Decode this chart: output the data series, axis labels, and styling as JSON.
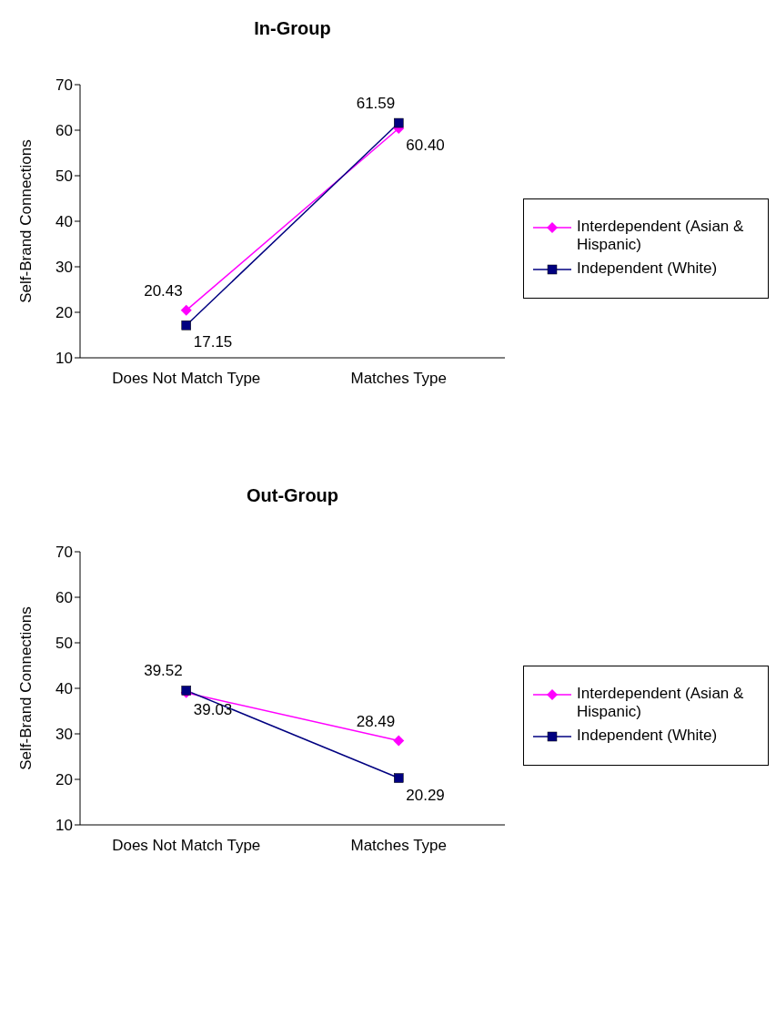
{
  "chart_data": [
    {
      "type": "line",
      "title": "In-Group",
      "ylabel": "Self-Brand Connections",
      "categories": [
        "Does Not Match Type",
        "Matches Type"
      ],
      "ylim": [
        10,
        70
      ],
      "yticks": [
        10,
        20,
        30,
        40,
        50,
        60,
        70
      ],
      "grid": false,
      "legend": "right",
      "series": [
        {
          "name": "Interdependent (Asian & Hispanic)",
          "color": "#ff00ff",
          "marker": "diamond",
          "values": [
            20.43,
            60.4
          ],
          "value_labels": [
            "20.43",
            "60.40"
          ]
        },
        {
          "name": "Independent (White)",
          "color": "#000080",
          "marker": "square",
          "values": [
            17.15,
            61.59
          ],
          "value_labels": [
            "17.15",
            "61.59"
          ]
        }
      ]
    },
    {
      "type": "line",
      "title": "Out-Group",
      "ylabel": "Self-Brand Connections",
      "categories": [
        "Does Not Match Type",
        "Matches Type"
      ],
      "ylim": [
        10,
        70
      ],
      "yticks": [
        10,
        20,
        30,
        40,
        50,
        60,
        70
      ],
      "grid": false,
      "legend": "right",
      "series": [
        {
          "name": "Interdependent (Asian & Hispanic)",
          "color": "#ff00ff",
          "marker": "diamond",
          "values": [
            39.03,
            28.49
          ],
          "value_labels": [
            "39.03",
            "28.49"
          ]
        },
        {
          "name": "Independent (White)",
          "color": "#000080",
          "marker": "square",
          "values": [
            39.52,
            20.29
          ],
          "value_labels": [
            "39.52",
            "20.29"
          ]
        }
      ]
    }
  ]
}
